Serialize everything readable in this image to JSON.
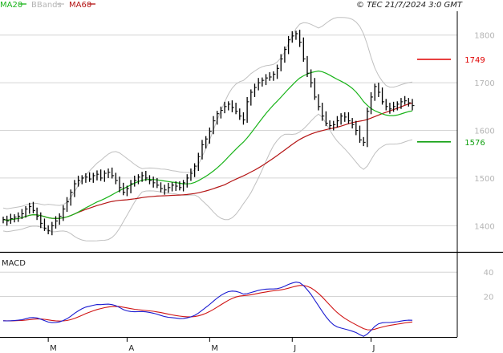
{
  "header": {
    "legend_ma20": "MA20",
    "legend_bbands": "BBands",
    "legend_ma60": "MA60",
    "copyright": "© TEC 21/7/2024 3:0 GMT"
  },
  "colors": {
    "ma20": "#19b319",
    "bbands": "#c0c0c0",
    "ma60": "#b41414",
    "price": "#000000",
    "macd": "#1a1ad0",
    "signal": "#d01414",
    "resistance": "#e00000",
    "support": "#10a010",
    "grid": "#d4d4d4"
  },
  "chart_data": [
    {
      "type": "candlestick",
      "ylim": [
        1345,
        1850
      ],
      "yticks": [
        1400,
        1500,
        1600,
        1700,
        1800
      ],
      "xlabels": [
        "M",
        "A",
        "M",
        "J",
        "J"
      ],
      "legend_placement": "top-left",
      "levels": [
        {
          "label": "1749",
          "value": 1749,
          "role": "resistance"
        },
        {
          "label": "1576",
          "value": 1576,
          "role": "support"
        }
      ],
      "series": [
        {
          "name": "Price",
          "values": [
            1413,
            1410,
            1415,
            1418,
            1420,
            1425,
            1435,
            1440,
            1432,
            1420,
            1405,
            1395,
            1390,
            1400,
            1410,
            1420,
            1435,
            1450,
            1470,
            1488,
            1495,
            1500,
            1502,
            1498,
            1505,
            1508,
            1500,
            1510,
            1512,
            1505,
            1495,
            1480,
            1470,
            1478,
            1488,
            1495,
            1502,
            1505,
            1500,
            1495,
            1490,
            1485,
            1478,
            1475,
            1480,
            1485,
            1483,
            1480,
            1490,
            1500,
            1510,
            1525,
            1545,
            1570,
            1582,
            1598,
            1620,
            1635,
            1642,
            1650,
            1655,
            1648,
            1640,
            1630,
            1622,
            1660,
            1680,
            1690,
            1700,
            1705,
            1710,
            1712,
            1718,
            1730,
            1750,
            1770,
            1790,
            1798,
            1803,
            1785,
            1750,
            1720,
            1700,
            1670,
            1650,
            1630,
            1615,
            1610,
            1612,
            1620,
            1630,
            1628,
            1620,
            1612,
            1600,
            1580,
            1575,
            1640,
            1670,
            1692,
            1680,
            1660,
            1650,
            1645,
            1650,
            1655,
            1660,
            1662,
            1658,
            1652
          ]
        },
        {
          "name": "MA20",
          "values": []
        },
        {
          "name": "BBands",
          "values": []
        },
        {
          "name": "MA60",
          "values": []
        }
      ]
    },
    {
      "type": "line",
      "title": "MACD",
      "ylim": [
        -12,
        54
      ],
      "yticks": [
        20,
        40
      ],
      "series": [
        {
          "name": "MACD",
          "values": []
        },
        {
          "name": "Signal",
          "values": []
        }
      ]
    }
  ]
}
